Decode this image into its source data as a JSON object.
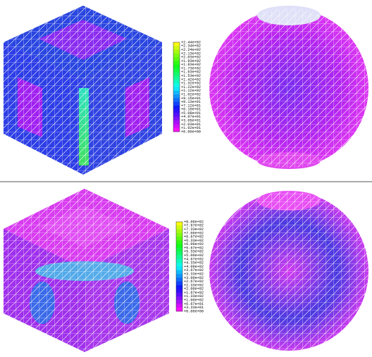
{
  "legends": [
    {
      "labels": [
        "+2.44e+02",
        "+2.34e+02",
        "+2.24e+02",
        "+2.13e+02",
        "+2.03e+02",
        "+1.93e+02",
        "+1.83e+02",
        "+1.73e+02",
        "+1.63e+02",
        "+1.53e+02",
        "+1.42e+02",
        "+1.32e+02",
        "+1.22e+02",
        "+1.12e+02",
        "+1.02e+02",
        "+9.15e+01",
        "+8.13e+01",
        "+7.12e+01",
        "+6.10e+01",
        "+5.08e+01",
        "+4.07e+01",
        "+3.05e+01",
        "+2.03e+01",
        "+1.02e+01",
        "+0.00e+00"
      ]
    },
    {
      "labels": [
        "+8.00e+02",
        "+7.67e+02",
        "+7.33e+02",
        "+7.00e+02",
        "+6.67e+02",
        "+6.33e+02",
        "+6.00e+02",
        "+5.67e+02",
        "+5.33e+02",
        "+5.00e+02",
        "+4.67e+02",
        "+4.33e+02",
        "+4.00e+02",
        "+3.67e+02",
        "+3.33e+02",
        "+3.00e+02",
        "+2.67e+02",
        "+2.33e+02",
        "+2.00e+02",
        "+1.67e+02",
        "+1.33e+02",
        "+1.00e+02",
        "+6.67e+01",
        "+3.33e+01",
        "+0.00e+00"
      ]
    }
  ]
}
